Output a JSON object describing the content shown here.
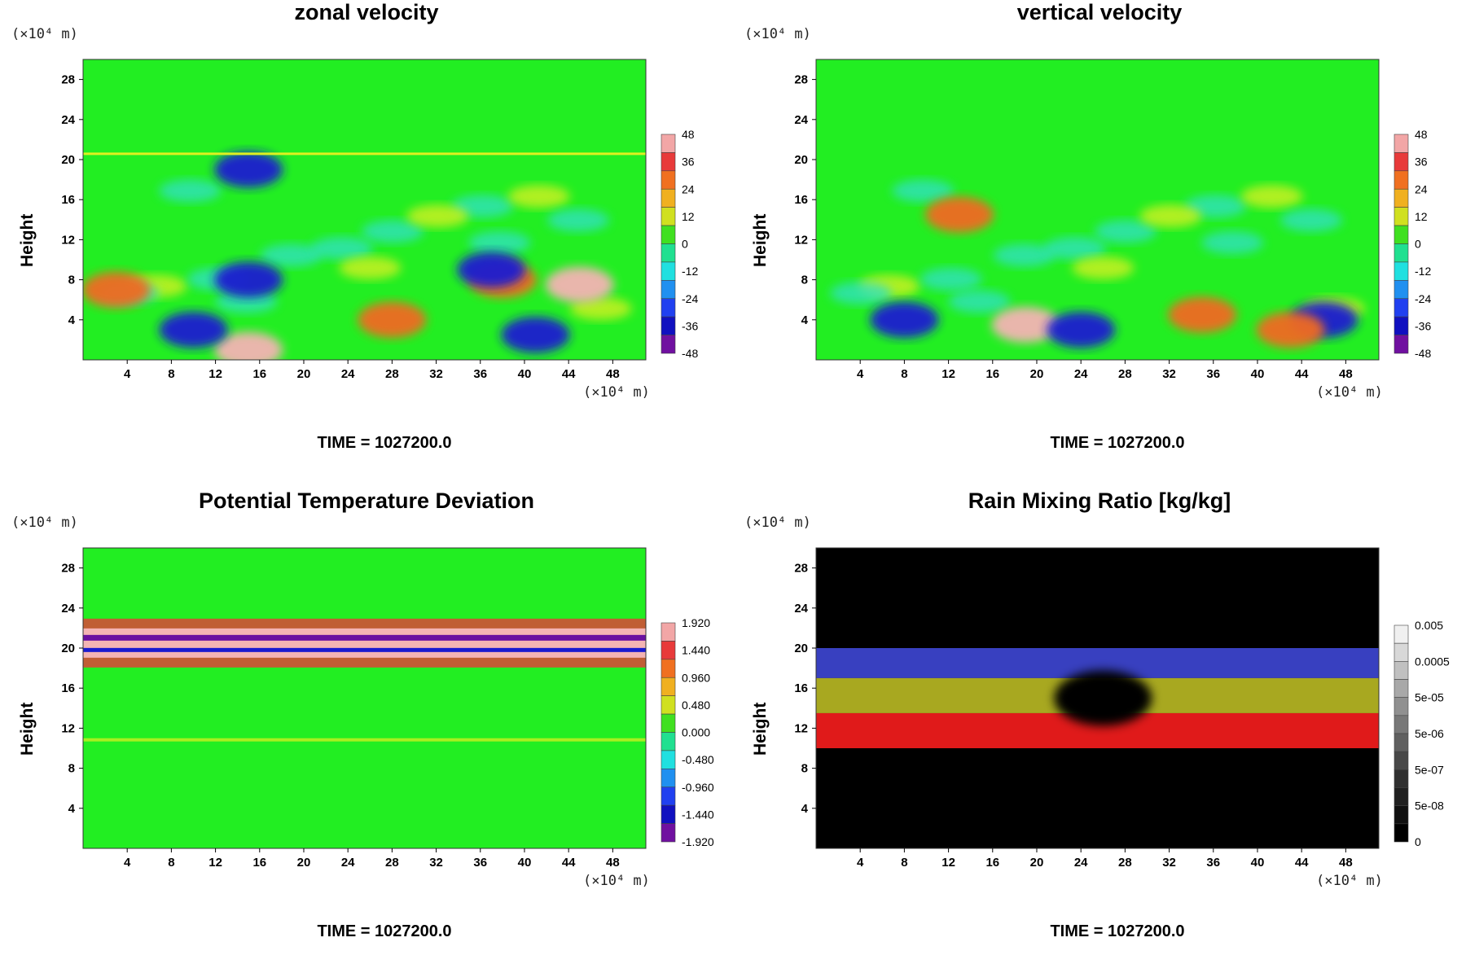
{
  "chart_data": [
    {
      "type": "heatmap",
      "title": "zonal velocity",
      "ylabel": "Height",
      "y_unit": "(×10⁴ m)",
      "x_unit": "(×10⁴ m)",
      "xlim": [
        0,
        51
      ],
      "ylim": [
        0,
        30
      ],
      "x_ticks": [
        4,
        8,
        12,
        16,
        20,
        24,
        28,
        32,
        36,
        40,
        44,
        48
      ],
      "y_ticks": [
        4,
        8,
        12,
        16,
        20,
        24,
        28
      ],
      "footer": "TIME = 1027200.0",
      "colorbar": {
        "labels": [
          "48",
          "36",
          "24",
          "12",
          "0",
          "-12",
          "-24",
          "-36",
          "-48"
        ],
        "palette": [
          "#f2a6a6",
          "#e83a3a",
          "#f07020",
          "#f0b020",
          "#d0e020",
          "#40e020",
          "#20e090",
          "#20e0e0",
          "#2090f0",
          "#2040f0",
          "#1010c0",
          "#7010a0"
        ]
      },
      "background": "#22ee22",
      "features": [
        {
          "x": 45,
          "y": 7.5,
          "level": "max"
        },
        {
          "x": 38,
          "y": 8,
          "level": "high"
        },
        {
          "x": 15,
          "y": 1,
          "level": "max"
        },
        {
          "x": 3,
          "y": 7,
          "level": "high"
        },
        {
          "x": 15,
          "y": 8,
          "level": "min"
        },
        {
          "x": 41,
          "y": 2.5,
          "level": "min"
        },
        {
          "x": 10,
          "y": 3,
          "level": "min"
        },
        {
          "x": 15,
          "y": 19,
          "level": "min"
        },
        {
          "x": 37,
          "y": 9,
          "level": "min"
        },
        {
          "x": 28,
          "y": 4,
          "level": "high"
        }
      ]
    },
    {
      "type": "heatmap",
      "title": "vertical velocity",
      "ylabel": "Height",
      "y_unit": "(×10⁴ m)",
      "x_unit": "(×10⁴ m)",
      "xlim": [
        0,
        51
      ],
      "ylim": [
        0,
        30
      ],
      "x_ticks": [
        4,
        8,
        12,
        16,
        20,
        24,
        28,
        32,
        36,
        40,
        44,
        48
      ],
      "y_ticks": [
        4,
        8,
        12,
        16,
        20,
        24,
        28
      ],
      "footer": "TIME = 1027200.0",
      "colorbar": {
        "labels": [
          "48",
          "36",
          "24",
          "12",
          "0",
          "-12",
          "-24",
          "-36",
          "-48"
        ],
        "palette": [
          "#f2a6a6",
          "#e83a3a",
          "#f07020",
          "#f0b020",
          "#d0e020",
          "#40e020",
          "#20e090",
          "#20e0e0",
          "#2090f0",
          "#2040f0",
          "#1010c0",
          "#7010a0"
        ]
      },
      "background": "#22ee22",
      "features": [
        {
          "x": 19,
          "y": 3.5,
          "level": "max"
        },
        {
          "x": 35,
          "y": 4.5,
          "level": "high"
        },
        {
          "x": 13,
          "y": 14.5,
          "level": "high"
        },
        {
          "x": 46,
          "y": 4,
          "level": "min"
        },
        {
          "x": 24,
          "y": 3,
          "level": "min"
        },
        {
          "x": 8,
          "y": 4,
          "level": "min"
        },
        {
          "x": 43,
          "y": 3,
          "level": "high"
        }
      ]
    },
    {
      "type": "heatmap",
      "title": "Potential Temperature Deviation",
      "ylabel": "Height",
      "y_unit": "(×10⁴ m)",
      "x_unit": "(×10⁴ m)",
      "xlim": [
        0,
        51
      ],
      "ylim": [
        0,
        30
      ],
      "x_ticks": [
        4,
        8,
        12,
        16,
        20,
        24,
        28,
        32,
        36,
        40,
        44,
        48
      ],
      "y_ticks": [
        4,
        8,
        12,
        16,
        20,
        24,
        28
      ],
      "footer": "TIME = 1027200.0",
      "colorbar": {
        "labels": [
          "1.920",
          "1.440",
          "0.960",
          "0.480",
          "0.000",
          "-0.480",
          "-0.960",
          "-1.440",
          "-1.920"
        ],
        "palette": [
          "#f2a6a6",
          "#e83a3a",
          "#f07020",
          "#f0b020",
          "#d0e020",
          "#40e020",
          "#20e090",
          "#20e0e0",
          "#2090f0",
          "#2040f0",
          "#1010c0",
          "#7010a0"
        ]
      },
      "background": "#22ee22",
      "band_height": 20.5
    },
    {
      "type": "heatmap",
      "title": "Rain Mixing Ratio [kg/kg]",
      "ylabel": "Height",
      "y_unit": "(×10⁴ m)",
      "x_unit": "(×10⁴ m)",
      "xlim": [
        0,
        51
      ],
      "ylim": [
        0,
        30
      ],
      "x_ticks": [
        4,
        8,
        12,
        16,
        20,
        24,
        28,
        32,
        36,
        40,
        44,
        48
      ],
      "y_ticks": [
        4,
        8,
        12,
        16,
        20,
        24,
        28
      ],
      "footer": "TIME = 1027200.0",
      "colorbar": {
        "labels": [
          "0.005",
          "0.0005",
          "5e-05",
          "5e-06",
          "5e-07",
          "5e-08",
          "0"
        ],
        "palette": [
          "#f0f0f0",
          "#d8d8d8",
          "#c0c0c0",
          "#a8a8a8",
          "#909090",
          "#787878",
          "#606060",
          "#484848",
          "#303030",
          "#202020",
          "#101010",
          "#000000"
        ]
      },
      "background": "#000000",
      "layers": [
        {
          "name": "blue",
          "y_from": 17,
          "y_to": 20
        },
        {
          "name": "yellow",
          "y_from": 13.5,
          "y_to": 17
        },
        {
          "name": "red",
          "y_from": 10,
          "y_to": 13.5
        }
      ]
    }
  ]
}
